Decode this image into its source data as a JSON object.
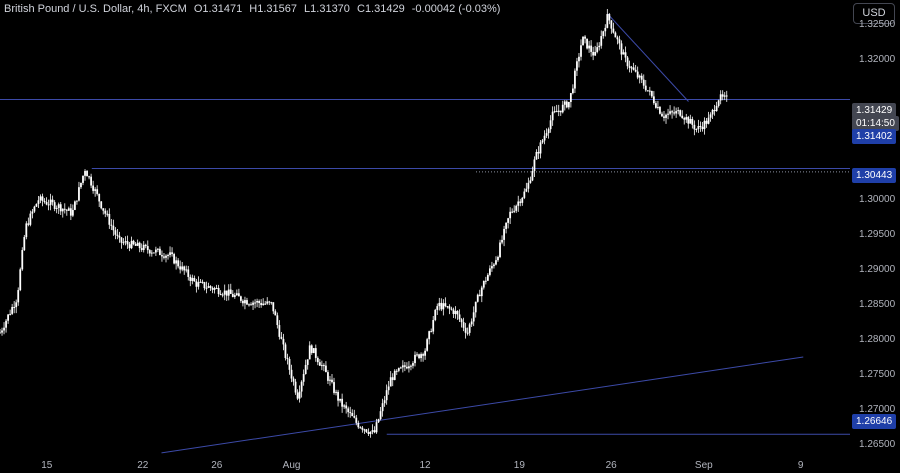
{
  "header": {
    "symbol": "British Pound / U.S. Dollar, 4h, FXCM",
    "open_key": "O",
    "open": "1.31471",
    "high_key": "H",
    "high": "1.31567",
    "low_key": "L",
    "low": "1.31370",
    "close_key": "C",
    "close": "1.31429",
    "change": "-0.00042 (-0.03%)"
  },
  "currency_button": "USD",
  "colors": {
    "background": "#000000",
    "candle": "#ffffff",
    "hline": "#3c4aa8",
    "trendline": "#3c4aa8",
    "label_blue": "#1f3fa8",
    "label_gray": "#434651"
  },
  "chart_data": {
    "type": "candlestick",
    "title": "British Pound / U.S. Dollar, 4h, FXCM",
    "ylim": [
      1.2635,
      1.3285
    ],
    "y_ticks": [
      "1.32500",
      "1.32000",
      "1.30000",
      "1.29500",
      "1.29000",
      "1.28500",
      "1.28000",
      "1.27500",
      "1.27000",
      "1.26500"
    ],
    "x_ticks": [
      "15",
      "22",
      "26",
      "Aug",
      "12",
      "19",
      "26",
      "Sep",
      "9"
    ],
    "price_labels": [
      {
        "text": "1.31429",
        "role": "last"
      },
      {
        "text": "01:14:50",
        "role": "countdown"
      },
      {
        "text": "1.31402",
        "role": "level"
      },
      {
        "text": "1.30443",
        "role": "level"
      },
      {
        "text": "1.26646",
        "role": "level"
      }
    ],
    "horizontal_levels": [
      1.31429,
      1.30443,
      1.26646
    ],
    "dotted_level": 1.30395,
    "trendlines": [
      {
        "name": "rising-support",
        "points": [
          [
            0.19,
            1.2638
          ],
          [
            0.945,
            1.2775
          ]
        ]
      },
      {
        "name": "falling-resistance",
        "points": [
          [
            0.715,
            1.3265
          ],
          [
            0.81,
            1.314
          ]
        ]
      }
    ],
    "path_keypoints": [
      [
        0.0,
        1.281
      ],
      [
        0.02,
        1.286
      ],
      [
        0.03,
        1.296
      ],
      [
        0.045,
        1.3
      ],
      [
        0.07,
        1.299
      ],
      [
        0.085,
        1.298
      ],
      [
        0.1,
        1.3044
      ],
      [
        0.12,
        1.299
      ],
      [
        0.14,
        1.294
      ],
      [
        0.17,
        1.293
      ],
      [
        0.2,
        1.292
      ],
      [
        0.23,
        1.288
      ],
      [
        0.26,
        1.287
      ],
      [
        0.29,
        1.2855
      ],
      [
        0.32,
        1.285
      ],
      [
        0.335,
        1.278
      ],
      [
        0.35,
        1.272
      ],
      [
        0.365,
        1.279
      ],
      [
        0.38,
        1.276
      ],
      [
        0.4,
        1.271
      ],
      [
        0.42,
        1.268
      ],
      [
        0.44,
        1.2665
      ],
      [
        0.46,
        1.2745
      ],
      [
        0.48,
        1.2765
      ],
      [
        0.5,
        1.2785
      ],
      [
        0.515,
        1.285
      ],
      [
        0.535,
        1.284
      ],
      [
        0.55,
        1.281
      ],
      [
        0.565,
        1.287
      ],
      [
        0.585,
        1.292
      ],
      [
        0.6,
        1.298
      ],
      [
        0.62,
        1.3015
      ],
      [
        0.63,
        1.306
      ],
      [
        0.65,
        1.312
      ],
      [
        0.67,
        1.314
      ],
      [
        0.685,
        1.323
      ],
      [
        0.7,
        1.3205
      ],
      [
        0.715,
        1.3262
      ],
      [
        0.735,
        1.32
      ],
      [
        0.76,
        1.316
      ],
      [
        0.78,
        1.312
      ],
      [
        0.8,
        1.3125
      ],
      [
        0.82,
        1.31
      ],
      [
        0.835,
        1.3115
      ],
      [
        0.845,
        1.3145
      ],
      [
        0.855,
        1.3143
      ]
    ]
  }
}
